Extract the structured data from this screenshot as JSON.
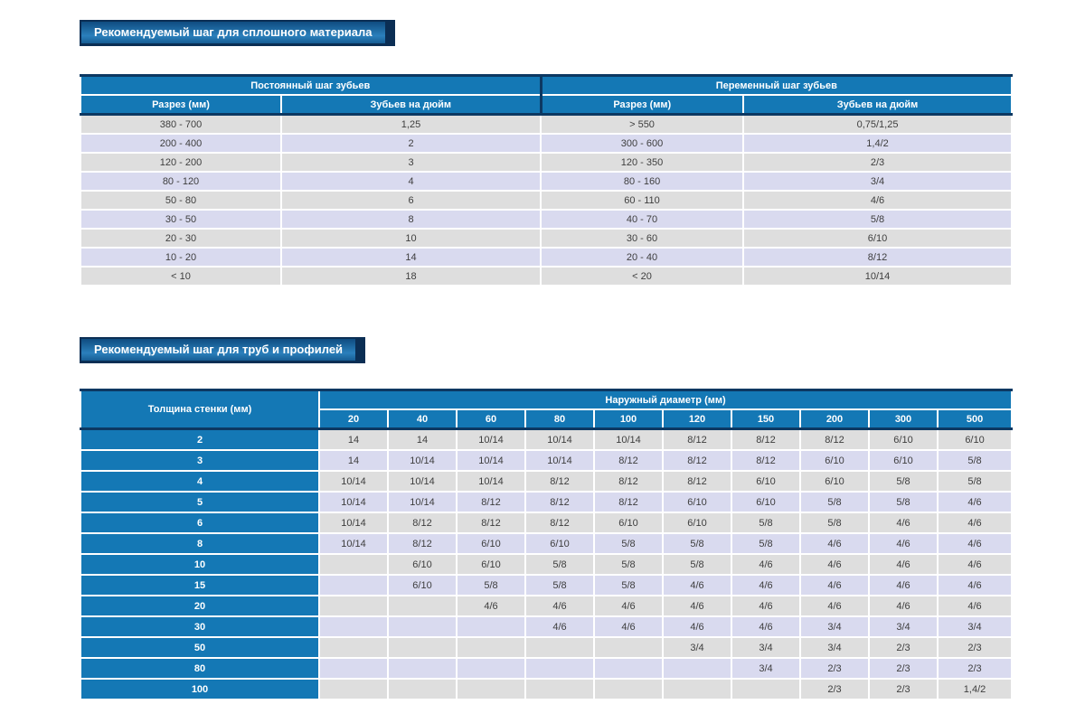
{
  "colors": {
    "header_blue": "#1478b5",
    "banner_dark": "#0b2e54",
    "banner_gradient_top": "#0f4c80",
    "banner_gradient_bottom": "#2b80bc",
    "row_gray": "#dedede",
    "row_lavender": "#d9daef",
    "cell_text": "#3e3e3e",
    "dark_border": "#0c3862"
  },
  "section1": {
    "banner": "Рекомендуемый шаг для сплошного материала",
    "table": {
      "group_headers": [
        "Постоянный шаг зубьев",
        "Переменный шаг зубьев"
      ],
      "col_headers": [
        "Разрез (мм)",
        "Зубьев на дюйм",
        "Разрез (мм)",
        "Зубьев на дюйм"
      ],
      "rows": [
        [
          "380 - 700",
          "1,25",
          "> 550",
          "0,75/1,25"
        ],
        [
          "200 - 400",
          "2",
          "300 - 600",
          "1,4/2"
        ],
        [
          "120 - 200",
          "3",
          "120 - 350",
          "2/3"
        ],
        [
          "80 - 120",
          "4",
          "80 - 160",
          "3/4"
        ],
        [
          "50 - 80",
          "6",
          "60 - 110",
          "4/6"
        ],
        [
          "30 - 50",
          "8",
          "40 - 70",
          "5/8"
        ],
        [
          "20 - 30",
          "10",
          "30 - 60",
          "6/10"
        ],
        [
          "10 - 20",
          "14",
          "20 - 40",
          "8/12"
        ],
        [
          "< 10",
          "18",
          "< 20",
          "10/14"
        ]
      ]
    }
  },
  "section2": {
    "banner": "Рекомендуемый шаг для труб и профилей",
    "table": {
      "row_header_label": "Толщина стенки (мм)",
      "group_header": "Наружный диаметр (мм)",
      "diameters": [
        "20",
        "40",
        "60",
        "80",
        "100",
        "120",
        "150",
        "200",
        "300",
        "500"
      ],
      "rows": [
        {
          "wall": "2",
          "values": [
            "14",
            "14",
            "10/14",
            "10/14",
            "10/14",
            "8/12",
            "8/12",
            "8/12",
            "6/10",
            "6/10"
          ]
        },
        {
          "wall": "3",
          "values": [
            "14",
            "10/14",
            "10/14",
            "10/14",
            "8/12",
            "8/12",
            "8/12",
            "6/10",
            "6/10",
            "5/8"
          ]
        },
        {
          "wall": "4",
          "values": [
            "10/14",
            "10/14",
            "10/14",
            "8/12",
            "8/12",
            "8/12",
            "6/10",
            "6/10",
            "5/8",
            "5/8"
          ]
        },
        {
          "wall": "5",
          "values": [
            "10/14",
            "10/14",
            "8/12",
            "8/12",
            "8/12",
            "6/10",
            "6/10",
            "5/8",
            "5/8",
            "4/6"
          ]
        },
        {
          "wall": "6",
          "values": [
            "10/14",
            "8/12",
            "8/12",
            "8/12",
            "6/10",
            "6/10",
            "5/8",
            "5/8",
            "4/6",
            "4/6"
          ]
        },
        {
          "wall": "8",
          "values": [
            "10/14",
            "8/12",
            "6/10",
            "6/10",
            "5/8",
            "5/8",
            "5/8",
            "4/6",
            "4/6",
            "4/6"
          ]
        },
        {
          "wall": "10",
          "values": [
            "",
            "6/10",
            "6/10",
            "5/8",
            "5/8",
            "5/8",
            "4/6",
            "4/6",
            "4/6",
            "4/6"
          ]
        },
        {
          "wall": "15",
          "values": [
            "",
            "6/10",
            "5/8",
            "5/8",
            "5/8",
            "4/6",
            "4/6",
            "4/6",
            "4/6",
            "4/6"
          ]
        },
        {
          "wall": "20",
          "values": [
            "",
            "",
            "4/6",
            "4/6",
            "4/6",
            "4/6",
            "4/6",
            "4/6",
            "4/6",
            "4/6"
          ]
        },
        {
          "wall": "30",
          "values": [
            "",
            "",
            "",
            "4/6",
            "4/6",
            "4/6",
            "4/6",
            "3/4",
            "3/4",
            "3/4"
          ]
        },
        {
          "wall": "50",
          "values": [
            "",
            "",
            "",
            "",
            "",
            "3/4",
            "3/4",
            "3/4",
            "2/3",
            "2/3"
          ]
        },
        {
          "wall": "80",
          "values": [
            "",
            "",
            "",
            "",
            "",
            "",
            "3/4",
            "2/3",
            "2/3",
            "2/3"
          ]
        },
        {
          "wall": "100",
          "values": [
            "",
            "",
            "",
            "",
            "",
            "",
            "",
            "2/3",
            "2/3",
            "1,4/2"
          ]
        }
      ]
    }
  }
}
